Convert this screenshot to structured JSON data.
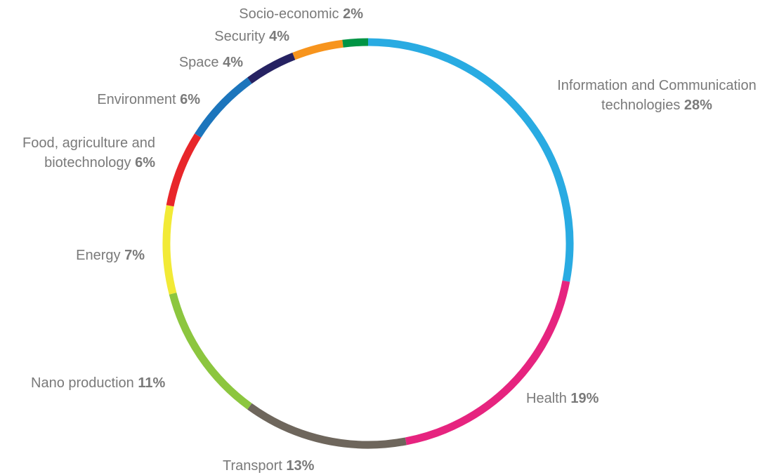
{
  "chart_data": {
    "type": "pie",
    "style": "ring",
    "slices": [
      {
        "label": "Information and Communication technologies",
        "label_lines": [
          "Information and Communication",
          "technologies"
        ],
        "value": 28,
        "value_label": "28%",
        "color": "#29abe2"
      },
      {
        "label": "Health",
        "label_lines": [
          "Health"
        ],
        "value": 19,
        "value_label": "19%",
        "color": "#e6247f"
      },
      {
        "label": "Transport",
        "label_lines": [
          "Transport"
        ],
        "value": 13,
        "value_label": "13%",
        "color": "#6e665c"
      },
      {
        "label": "Nano production",
        "label_lines": [
          "Nano production"
        ],
        "value": 11,
        "value_label": "11%",
        "color": "#8cc63f"
      },
      {
        "label": "Energy",
        "label_lines": [
          "Energy"
        ],
        "value": 7,
        "value_label": "7%",
        "color": "#f2ea36"
      },
      {
        "label": "Food, agriculture and biotechnology",
        "label_lines": [
          "Food, agriculture and",
          "biotechnology"
        ],
        "value": 6,
        "value_label": "6%",
        "color": "#e8262a"
      },
      {
        "label": "Environment",
        "label_lines": [
          "Environment"
        ],
        "value": 6,
        "value_label": "6%",
        "color": "#1c75bc"
      },
      {
        "label": "Space",
        "label_lines": [
          "Space"
        ],
        "value": 4,
        "value_label": "4%",
        "color": "#262262"
      },
      {
        "label": "Security",
        "label_lines": [
          "Security"
        ],
        "value": 4,
        "value_label": "4%",
        "color": "#f7941d"
      },
      {
        "label": "Socio-economic",
        "label_lines": [
          "Socio-economic"
        ],
        "value": 2,
        "value_label": "2%",
        "color": "#009444"
      }
    ]
  }
}
